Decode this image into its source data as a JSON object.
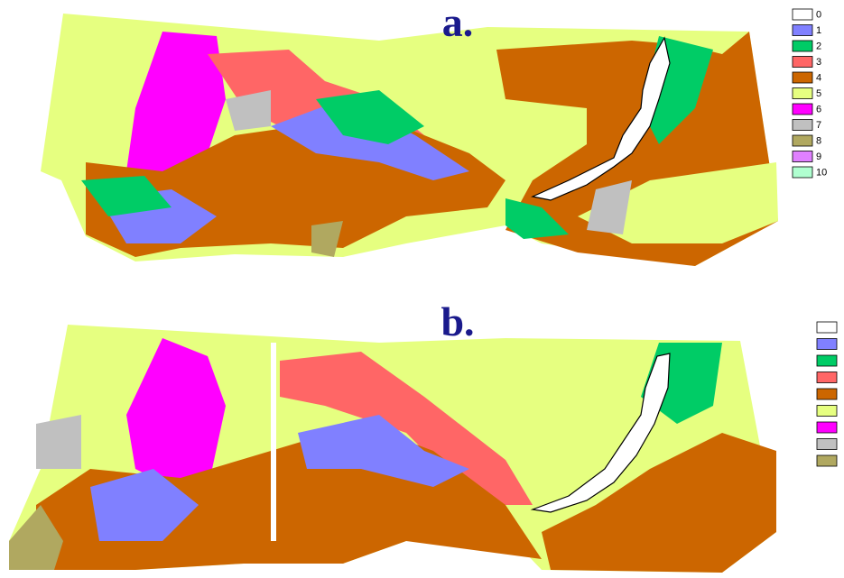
{
  "panels": [
    {
      "label": "a.",
      "legend": [
        {
          "label": "0",
          "color": "#ffffff"
        },
        {
          "label": "1",
          "color": "#8080ff"
        },
        {
          "label": "2",
          "color": "#00cc66"
        },
        {
          "label": "3",
          "color": "#ff6666"
        },
        {
          "label": "4",
          "color": "#cc6600"
        },
        {
          "label": "5",
          "color": "#e6ff80"
        },
        {
          "label": "6",
          "color": "#ff00ff"
        },
        {
          "label": "7",
          "color": "#c0c0c0"
        },
        {
          "label": "8",
          "color": "#b0a860"
        },
        {
          "label": "9",
          "color": "#e080ff"
        },
        {
          "label": "10",
          "color": "#b0ffd0"
        }
      ]
    },
    {
      "label": "b.",
      "legend": [
        {
          "color": "#ffffff"
        },
        {
          "color": "#8080ff"
        },
        {
          "color": "#00cc66"
        },
        {
          "color": "#ff6666"
        },
        {
          "color": "#cc6600"
        },
        {
          "color": "#e6ff80"
        },
        {
          "color": "#ff00ff"
        },
        {
          "color": "#c0c0c0"
        },
        {
          "color": "#b0a860"
        }
      ]
    }
  ]
}
